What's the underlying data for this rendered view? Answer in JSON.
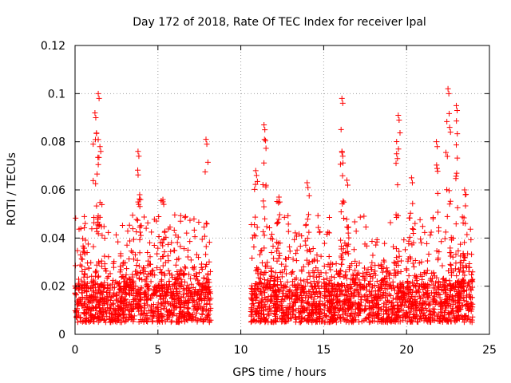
{
  "chart_data": {
    "type": "scatter",
    "title": "Day 172 of 2018, Rate Of TEC Index for receiver lpal",
    "xlabel": "GPS time / hours",
    "ylabel": "ROTI / TECUs",
    "xlim": [
      0,
      25
    ],
    "ylim": [
      0,
      0.12
    ],
    "xticks": [
      "0",
      "5",
      "10",
      "15",
      "20",
      "25"
    ],
    "xtick_values": [
      0,
      5,
      10,
      15,
      20,
      25
    ],
    "yticks": [
      "0",
      "0.02",
      "0.04",
      "0.06",
      "0.08",
      "0.1",
      "0.12"
    ],
    "ytick_values": [
      0,
      0.02,
      0.04,
      0.06,
      0.08,
      0.1,
      0.12
    ],
    "grid": true,
    "marker": "+",
    "series_color": "#ff0000",
    "data_gap_hours": [
      8.2,
      10.6
    ],
    "coverage_hours": [
      0,
      24
    ],
    "baseline_range": [
      0.005,
      0.02
    ],
    "notable_peaks": [
      {
        "x": 1.4,
        "y": 0.1
      },
      {
        "x": 1.2,
        "y": 0.092
      },
      {
        "x": 1.5,
        "y": 0.078
      },
      {
        "x": 3.8,
        "y": 0.076
      },
      {
        "x": 3.9,
        "y": 0.058
      },
      {
        "x": 5.3,
        "y": 0.056
      },
      {
        "x": 7.9,
        "y": 0.081
      },
      {
        "x": 10.9,
        "y": 0.068
      },
      {
        "x": 11.4,
        "y": 0.087
      },
      {
        "x": 12.3,
        "y": 0.057
      },
      {
        "x": 14.0,
        "y": 0.063
      },
      {
        "x": 16.1,
        "y": 0.098
      },
      {
        "x": 16.1,
        "y": 0.076
      },
      {
        "x": 16.4,
        "y": 0.064
      },
      {
        "x": 19.5,
        "y": 0.091
      },
      {
        "x": 19.4,
        "y": 0.075
      },
      {
        "x": 20.3,
        "y": 0.065
      },
      {
        "x": 21.8,
        "y": 0.08
      },
      {
        "x": 22.5,
        "y": 0.102
      },
      {
        "x": 22.6,
        "y": 0.086
      },
      {
        "x": 23.0,
        "y": 0.095
      },
      {
        "x": 23.5,
        "y": 0.06
      }
    ]
  }
}
